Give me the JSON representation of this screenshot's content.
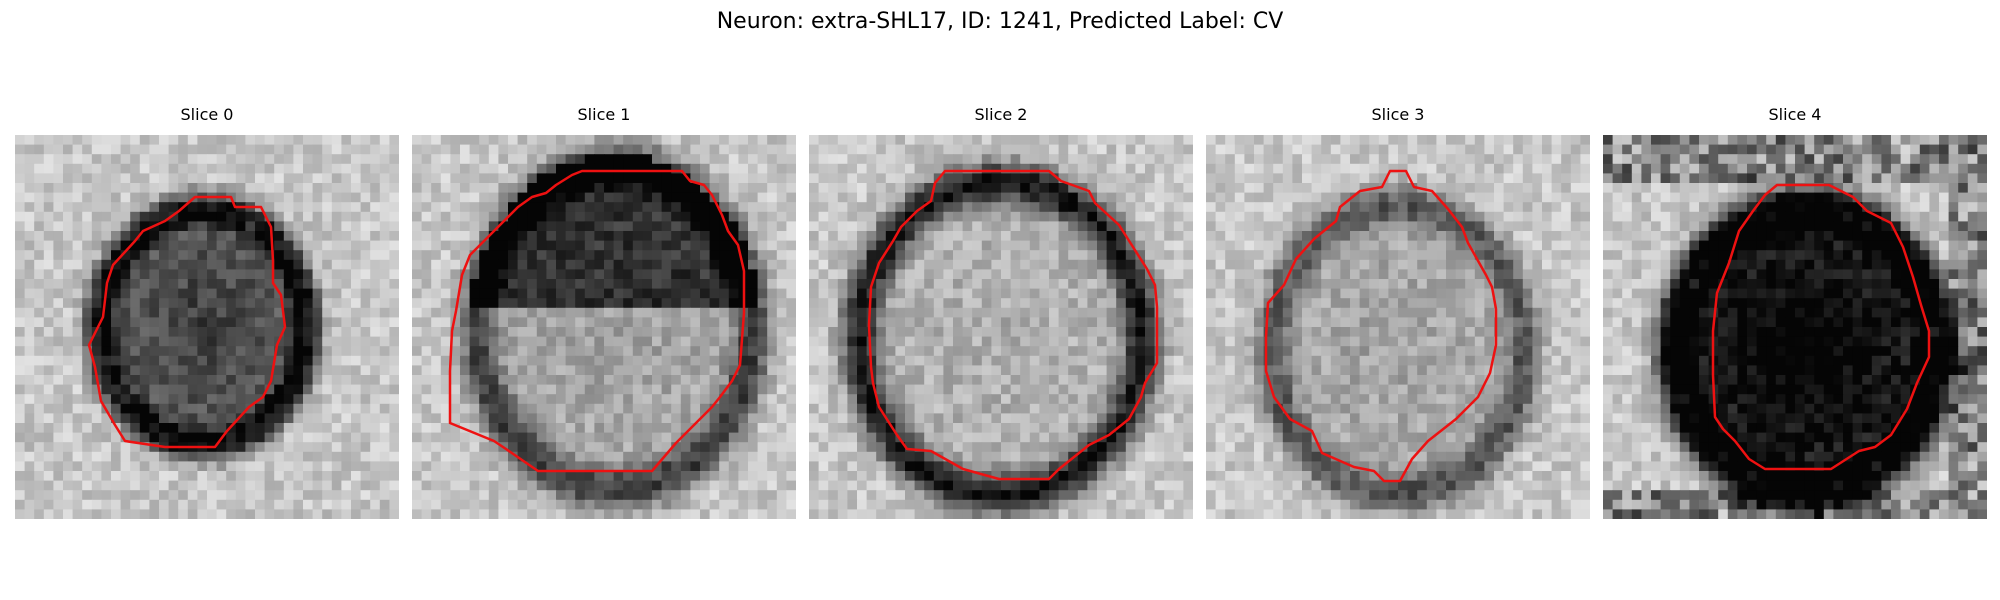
{
  "figure": {
    "title": "Neuron: extra-SHL17, ID: 1241, Predicted Label: CV"
  },
  "contour_color": "#ee1111",
  "slices": [
    {
      "title": "Slice 0",
      "ring_darkness": 0.72,
      "interior_darkness": 0.55
    },
    {
      "title": "Slice 1",
      "ring_darkness": 0.55,
      "interior_darkness": 0.15
    },
    {
      "title": "Slice 2",
      "ring_darkness": 0.7,
      "interior_darkness": 0.1
    },
    {
      "title": "Slice 3",
      "ring_darkness": 0.45,
      "interior_darkness": 0.15
    },
    {
      "title": "Slice 4",
      "ring_darkness": 0.85,
      "interior_darkness": 0.85
    }
  ]
}
